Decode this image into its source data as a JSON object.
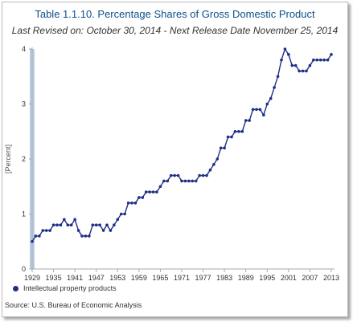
{
  "header": {
    "title": "Table 1.1.10. Percentage Shares of Gross Domestic Product",
    "subtitle": "Last Revised on: October 30, 2014 - Next Release Date November 25, 2014"
  },
  "source": "Source: U.S. Bureau of Economic  Analysis",
  "colors": {
    "series": "#1f2f86",
    "axis": "#aaaaaa",
    "title": "#0d4f8b",
    "highlight": "#b8cde3"
  },
  "chart_data": {
    "type": "line",
    "title": "Table 1.1.10. Percentage Shares of Gross Domestic Product",
    "subtitle": "Last Revised on: October 30, 2014 - Next Release Date November 25, 2014",
    "xlabel": "",
    "ylabel": "[Percent]",
    "ylim": [
      0,
      4
    ],
    "xlim": [
      1929,
      2013
    ],
    "yticks": [
      0,
      1,
      2,
      3,
      4
    ],
    "xtick_labels": [
      "1929",
      "1935",
      "1941",
      "1947",
      "1953",
      "1959",
      "1965",
      "1971",
      "1977",
      "1983",
      "1989",
      "1995",
      "2001",
      "2007",
      "2013"
    ],
    "grid": false,
    "legend_position": "bottom-left",
    "series": [
      {
        "name": "Intellectual property products",
        "x": [
          1929,
          1930,
          1931,
          1932,
          1933,
          1934,
          1935,
          1936,
          1937,
          1938,
          1939,
          1940,
          1941,
          1942,
          1943,
          1944,
          1945,
          1946,
          1947,
          1948,
          1949,
          1950,
          1951,
          1952,
          1953,
          1954,
          1955,
          1956,
          1957,
          1958,
          1959,
          1960,
          1961,
          1962,
          1963,
          1964,
          1965,
          1966,
          1967,
          1968,
          1969,
          1970,
          1971,
          1972,
          1973,
          1974,
          1975,
          1976,
          1977,
          1978,
          1979,
          1980,
          1981,
          1982,
          1983,
          1984,
          1985,
          1986,
          1987,
          1988,
          1989,
          1990,
          1991,
          1992,
          1993,
          1994,
          1995,
          1996,
          1997,
          1998,
          1999,
          2000,
          2001,
          2002,
          2003,
          2004,
          2005,
          2006,
          2007,
          2008,
          2009,
          2010,
          2011,
          2012,
          2013
        ],
        "y": [
          0.5,
          0.6,
          0.6,
          0.7,
          0.7,
          0.7,
          0.8,
          0.8,
          0.8,
          0.9,
          0.8,
          0.8,
          0.9,
          0.7,
          0.6,
          0.6,
          0.6,
          0.8,
          0.8,
          0.8,
          0.7,
          0.8,
          0.7,
          0.8,
          0.9,
          1.0,
          1.0,
          1.2,
          1.2,
          1.2,
          1.3,
          1.3,
          1.4,
          1.4,
          1.4,
          1.4,
          1.5,
          1.6,
          1.6,
          1.7,
          1.7,
          1.7,
          1.6,
          1.6,
          1.6,
          1.6,
          1.6,
          1.7,
          1.7,
          1.7,
          1.8,
          1.9,
          2.0,
          2.2,
          2.2,
          2.4,
          2.4,
          2.5,
          2.5,
          2.5,
          2.7,
          2.7,
          2.9,
          2.9,
          2.9,
          2.8,
          3.0,
          3.1,
          3.3,
          3.5,
          3.8,
          4.0,
          3.9,
          3.7,
          3.7,
          3.6,
          3.6,
          3.6,
          3.7,
          3.8,
          3.8,
          3.8,
          3.8,
          3.8,
          3.9
        ]
      }
    ]
  }
}
